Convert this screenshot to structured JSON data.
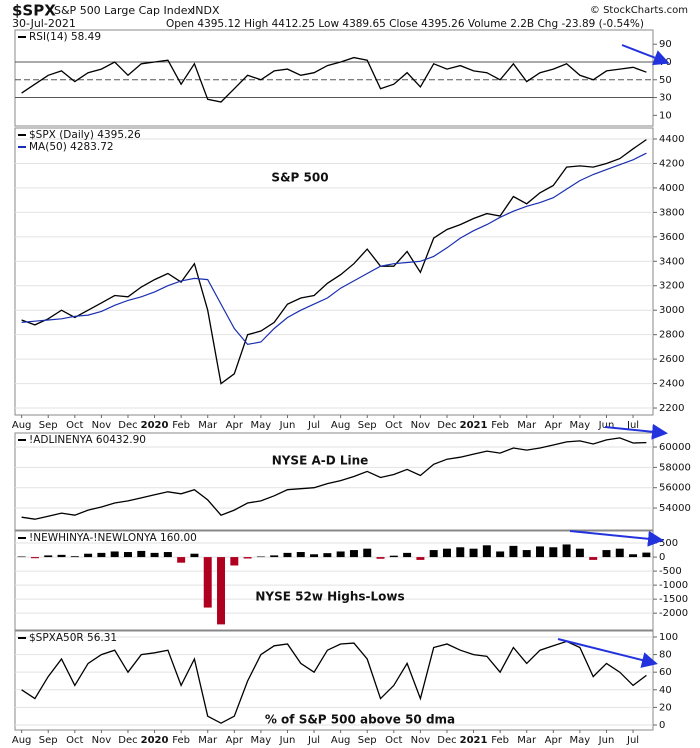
{
  "header": {
    "symbol": "$SPX",
    "name": "S&P 500 Large Cap Index",
    "exchange": "INDX",
    "date": "30-Jul-2021",
    "quote": "Open 4395.12  High 4412.25  Low 4389.65  Close 4395.26  Volume 2.2B  Chg -23.89 (-0.54%)",
    "credit": "© StockCharts.com"
  },
  "chart_data": [
    {
      "type": "line",
      "ylim": [
        -2,
        106
      ],
      "yticks": [
        10,
        30,
        50,
        70,
        90
      ],
      "hlines": [
        70,
        50,
        30
      ],
      "grid": false,
      "series": [
        {
          "name": "RSI(14) 58.49",
          "color": "#000000",
          "values": [
            35,
            45,
            55,
            60,
            48,
            58,
            62,
            70,
            55,
            68,
            70,
            72,
            45,
            68,
            28,
            25,
            40,
            55,
            50,
            60,
            62,
            55,
            58,
            66,
            70,
            75,
            72,
            40,
            45,
            58,
            42,
            68,
            62,
            66,
            60,
            58,
            50,
            68,
            48,
            58,
            62,
            68,
            55,
            50,
            60,
            62,
            64,
            58.49
          ]
        }
      ]
    },
    {
      "type": "line",
      "annotation": "S&P 500",
      "ylim": [
        2143,
        4490
      ],
      "yticks": [
        2200,
        2400,
        2600,
        2800,
        3000,
        3200,
        3400,
        3600,
        3800,
        4000,
        4200,
        4400
      ],
      "grid": true,
      "categories": [
        "Aug",
        null,
        "Sep",
        null,
        "Oct",
        null,
        "Nov",
        null,
        "Dec",
        null,
        "2020",
        null,
        "Feb",
        null,
        "Mar",
        null,
        "Apr",
        null,
        "May",
        null,
        "Jun",
        null,
        "Jul",
        null,
        "Aug",
        null,
        "Sep",
        null,
        "Oct",
        null,
        "Nov",
        null,
        "Dec",
        null,
        "2021",
        null,
        "Feb",
        null,
        "Mar",
        null,
        "Apr",
        null,
        "May",
        null,
        "Jun",
        null,
        "Jul",
        null
      ],
      "series": [
        {
          "name": "$SPX (Daily) 4395.26",
          "color": "#000000",
          "values": [
            2920,
            2880,
            2930,
            3000,
            2940,
            3000,
            3060,
            3120,
            3110,
            3190,
            3250,
            3300,
            3230,
            3380,
            3000,
            2400,
            2480,
            2800,
            2830,
            2900,
            3050,
            3100,
            3120,
            3220,
            3290,
            3380,
            3500,
            3360,
            3360,
            3480,
            3310,
            3590,
            3660,
            3700,
            3750,
            3790,
            3770,
            3930,
            3870,
            3960,
            4020,
            4170,
            4180,
            4170,
            4200,
            4240,
            4320,
            4395.26
          ]
        },
        {
          "name": "MA(50) 4283.72",
          "color": "#1a2fb0",
          "values": [
            2900,
            2910,
            2920,
            2930,
            2950,
            2960,
            2990,
            3040,
            3080,
            3110,
            3150,
            3200,
            3240,
            3260,
            3250,
            3050,
            2850,
            2720,
            2740,
            2850,
            2940,
            3000,
            3050,
            3100,
            3180,
            3240,
            3300,
            3360,
            3380,
            3390,
            3400,
            3440,
            3510,
            3590,
            3650,
            3700,
            3760,
            3810,
            3850,
            3880,
            3920,
            3990,
            4060,
            4110,
            4150,
            4190,
            4230,
            4283.72
          ]
        }
      ]
    },
    {
      "type": "line",
      "annotation": "NYSE A-D Line",
      "ylim": [
        51840,
        61380
      ],
      "yticks": [
        54000,
        56000,
        58000,
        60000
      ],
      "grid": true,
      "series": [
        {
          "name": "!ADLINENYA 60432.90",
          "color": "#000000",
          "values": [
            53100,
            52900,
            53200,
            53500,
            53300,
            53800,
            54100,
            54500,
            54700,
            55000,
            55300,
            55600,
            55400,
            55800,
            54800,
            53300,
            53800,
            54500,
            54700,
            55200,
            55800,
            55900,
            56000,
            56400,
            56700,
            57100,
            57600,
            57000,
            57300,
            57800,
            57200,
            58300,
            58800,
            59000,
            59300,
            59600,
            59400,
            59900,
            59700,
            59900,
            60200,
            60500,
            60600,
            60300,
            60700,
            60900,
            60400,
            60432.9
          ]
        }
      ]
    },
    {
      "type": "bar",
      "annotation": "NYSE 52w Highs-Lows",
      "ylim": [
        -2600,
        930
      ],
      "yticks": [
        -2000,
        -1500,
        -1000,
        -500,
        0,
        500
      ],
      "grid": true,
      "series": [
        {
          "name": "!NEWHINYA-!NEWLONYA 160.00",
          "color": "#000000",
          "negative_color": "#b00020",
          "values": [
            20,
            -40,
            60,
            80,
            30,
            120,
            150,
            200,
            180,
            220,
            150,
            180,
            -200,
            120,
            -1800,
            -2400,
            -300,
            -50,
            20,
            60,
            150,
            180,
            100,
            140,
            200,
            250,
            300,
            -60,
            50,
            150,
            -100,
            250,
            300,
            350,
            300,
            420,
            200,
            400,
            250,
            380,
            350,
            450,
            300,
            -100,
            250,
            300,
            100,
            160
          ]
        }
      ]
    },
    {
      "type": "line",
      "annotation": "% of S&P 500 above 50 dma",
      "ylim": [
        -5.7,
        106.8
      ],
      "yticks": [
        0,
        20,
        40,
        60,
        80,
        100
      ],
      "grid": true,
      "categories": [
        "Aug",
        null,
        "Sep",
        null,
        "Oct",
        null,
        "Nov",
        null,
        "Dec",
        null,
        "2020",
        null,
        "Feb",
        null,
        "Mar",
        null,
        "Apr",
        null,
        "May",
        null,
        "Jun",
        null,
        "Jul",
        null,
        "Aug",
        null,
        "Sep",
        null,
        "Oct",
        null,
        "Nov",
        null,
        "Dec",
        null,
        "2021",
        null,
        "Feb",
        null,
        "Mar",
        null,
        "Apr",
        null,
        "May",
        null,
        "Jun",
        null,
        "Jul",
        null
      ],
      "series": [
        {
          "name": "$SPXA50R 56.31",
          "color": "#000000",
          "values": [
            40,
            30,
            55,
            75,
            45,
            70,
            80,
            85,
            60,
            80,
            82,
            85,
            45,
            75,
            10,
            2,
            10,
            50,
            80,
            90,
            92,
            70,
            60,
            85,
            92,
            93,
            75,
            30,
            45,
            70,
            30,
            88,
            92,
            85,
            80,
            78,
            60,
            88,
            70,
            85,
            90,
            95,
            88,
            55,
            70,
            60,
            45,
            56.31
          ]
        }
      ]
    }
  ]
}
